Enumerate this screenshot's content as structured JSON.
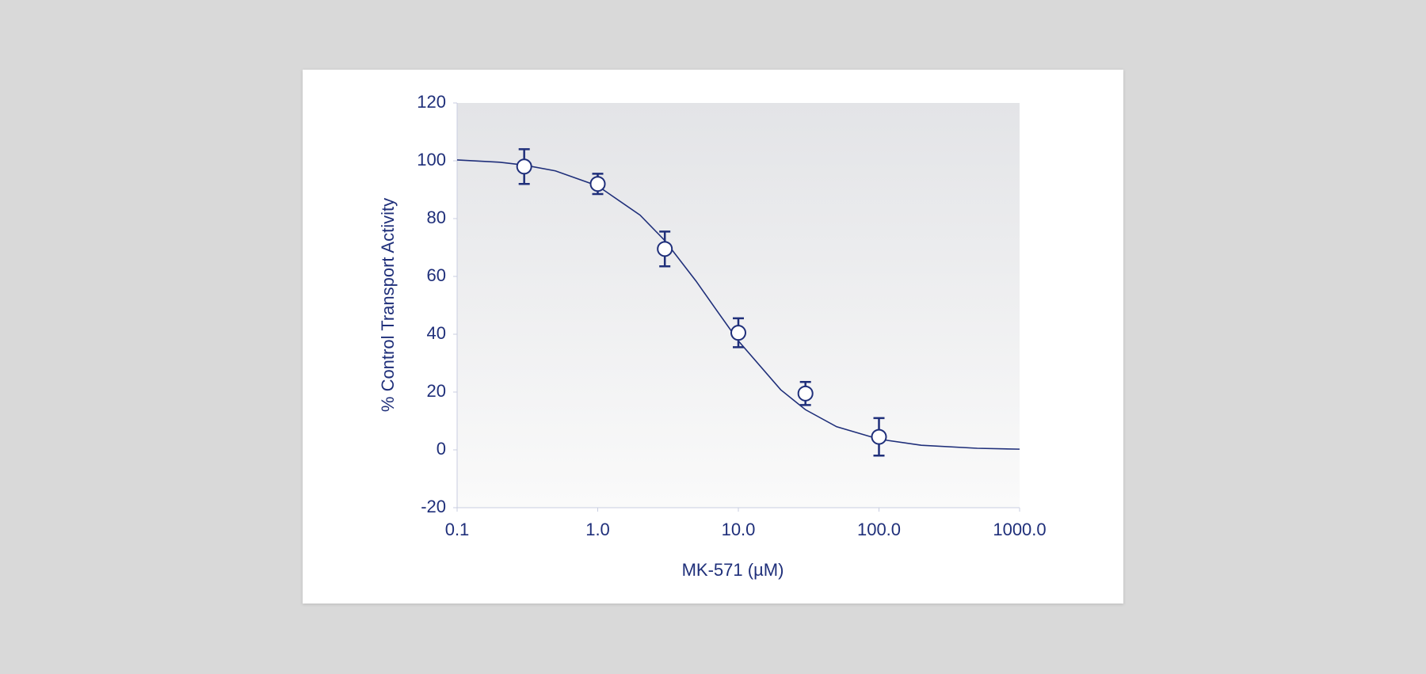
{
  "chart_data": {
    "type": "dose-response",
    "x_label": "MK-571 (µM)",
    "y_label": "% Control Transport Activity",
    "log_x": true,
    "color": "#1f2f7a",
    "xlim": [
      0.1,
      1000
    ],
    "xticks": [
      0.1,
      {
        "value": 1,
        "label": "1.0"
      },
      {
        "value": 10,
        "label": "10.0"
      },
      {
        "value": 100,
        "label": "100.0"
      },
      {
        "value": 1000,
        "label": "1000.0"
      }
    ],
    "ylim": [
      -20,
      120
    ],
    "yticks": [
      -20,
      0,
      20,
      40,
      60,
      80,
      100,
      120
    ],
    "points": {
      "x": [
        0.3,
        1,
        3,
        10,
        30,
        100
      ],
      "values": [
        98,
        92,
        69.5,
        40.5,
        19.5,
        4.5
      ],
      "errors": [
        6,
        3.5,
        6,
        5,
        4,
        6.5
      ]
    },
    "fit": {
      "x": [
        0.1,
        0.2,
        0.3,
        0.5,
        1,
        2,
        3,
        5,
        7,
        10,
        20,
        30,
        50,
        100,
        200,
        500,
        1000
      ],
      "values": [
        100.3,
        99.5,
        98.5,
        96.5,
        91.3,
        81.2,
        72.4,
        58.4,
        48.3,
        37.7,
        20.8,
        13.9,
        8.0,
        3.7,
        1.6,
        0.55,
        0.24
      ]
    }
  }
}
